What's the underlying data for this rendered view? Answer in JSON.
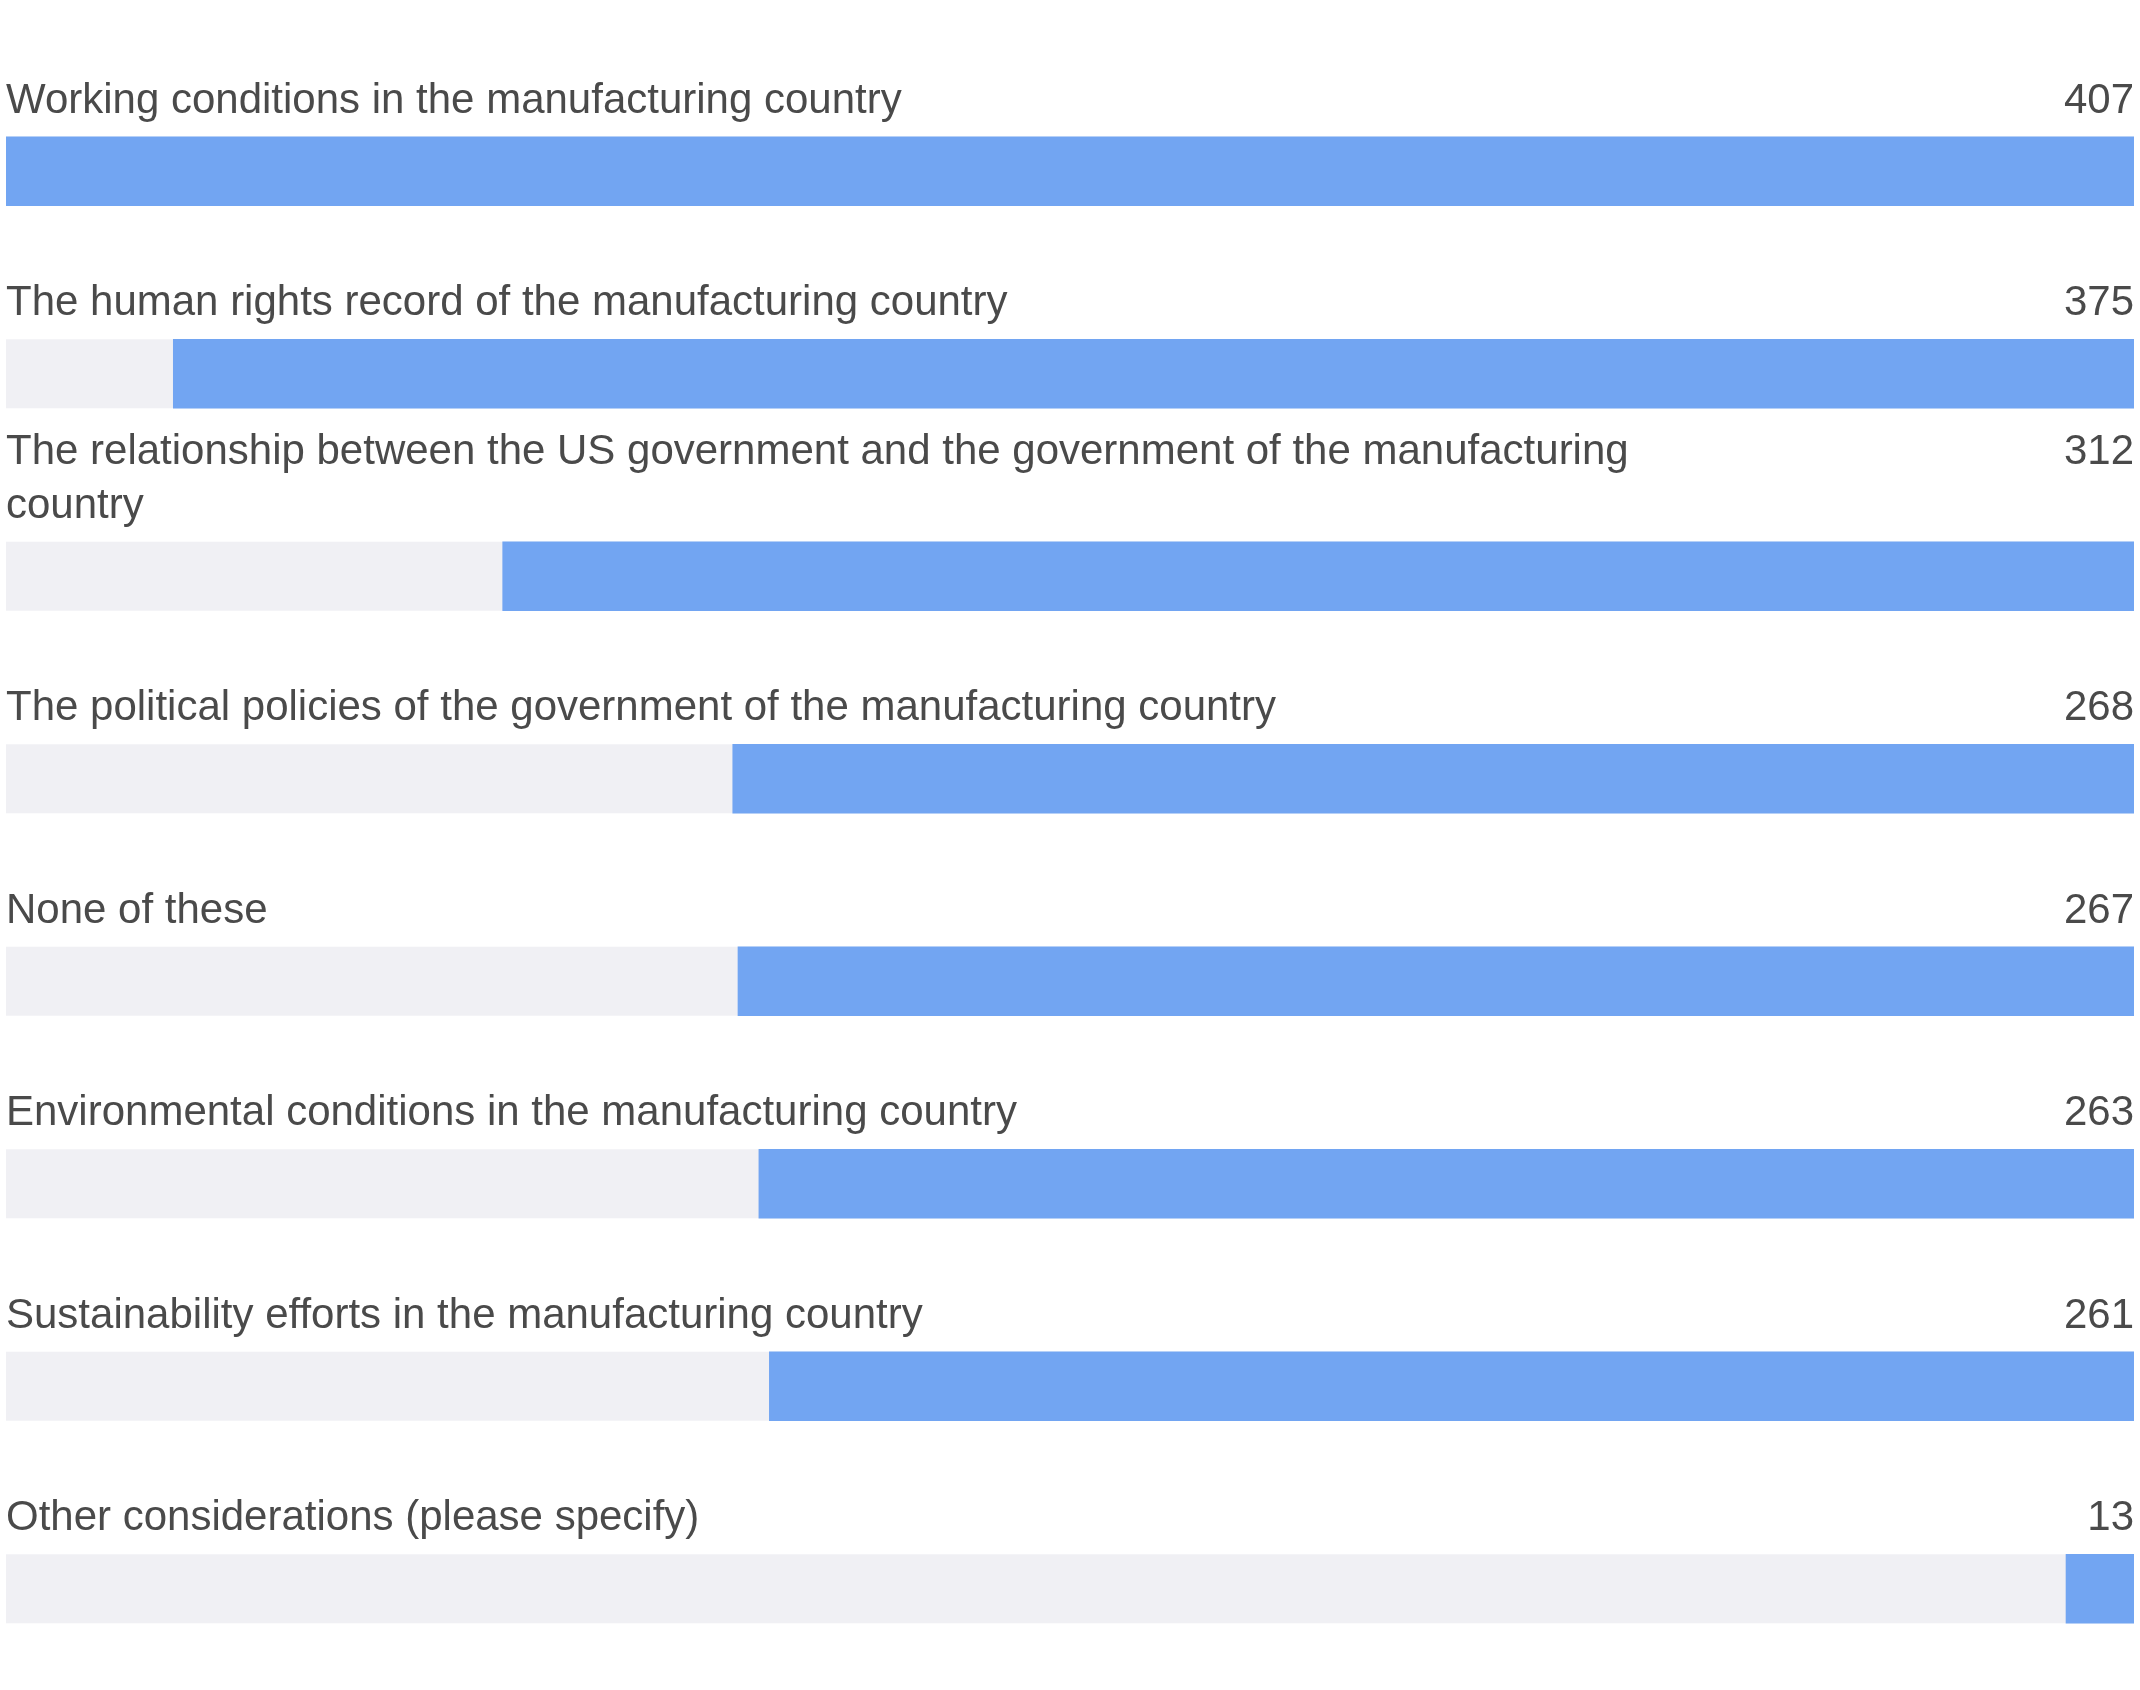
{
  "chart_data": {
    "type": "bar",
    "orientation": "horizontal",
    "categories": [
      "Working conditions in the manufacturing country",
      "The human rights record of the manufacturing country",
      "The relationship between the US government and the government of the manufacturing country",
      "The political policies of the government of the manufacturing country",
      "None of these",
      "Environmental conditions in the manufacturing country",
      "Sustainability efforts in the manufacturing country",
      "Other considerations (please specify)"
    ],
    "values": [
      407,
      375,
      312,
      268,
      267,
      263,
      261,
      13
    ],
    "color": "#72a5f2",
    "xlim": [
      407,
      0
    ],
    "tick_labels": false,
    "data_labels": true
  }
}
